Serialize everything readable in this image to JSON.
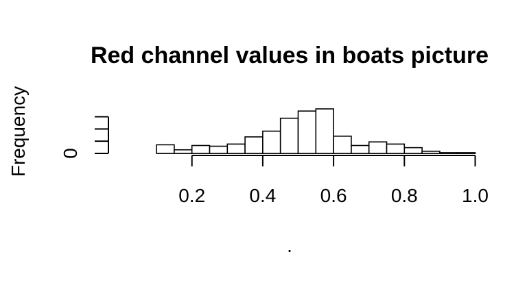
{
  "chart_data": {
    "type": "bar",
    "title": "Red channel values in boats picture",
    "xlabel": ".",
    "ylabel": "Frequency",
    "bin_width": 0.05,
    "bins_start": [
      0.1,
      0.15,
      0.2,
      0.25,
      0.3,
      0.35,
      0.4,
      0.45,
      0.5,
      0.55,
      0.6,
      0.65,
      0.7,
      0.75,
      0.8,
      0.85,
      0.9,
      0.95
    ],
    "values": [
      12,
      5,
      11,
      10,
      13,
      23,
      31,
      49,
      59,
      62,
      24,
      11,
      16,
      13,
      8,
      3,
      1,
      1
    ],
    "xlim": [
      0,
      1.05
    ],
    "ylim": [
      0,
      62
    ],
    "x_ticks": [
      0.2,
      0.4,
      0.6,
      0.8,
      1.0
    ],
    "x_tick_labels": [
      "0.2",
      "0.4",
      "0.6",
      "0.8",
      "1.0"
    ],
    "y_ticks": [
      0,
      17,
      34,
      51
    ],
    "y_tick_labels": [
      "0",
      "",
      "",
      ""
    ],
    "grid": false,
    "legend": "none",
    "bar_color": "#ffffff",
    "line_color": "#000000"
  }
}
